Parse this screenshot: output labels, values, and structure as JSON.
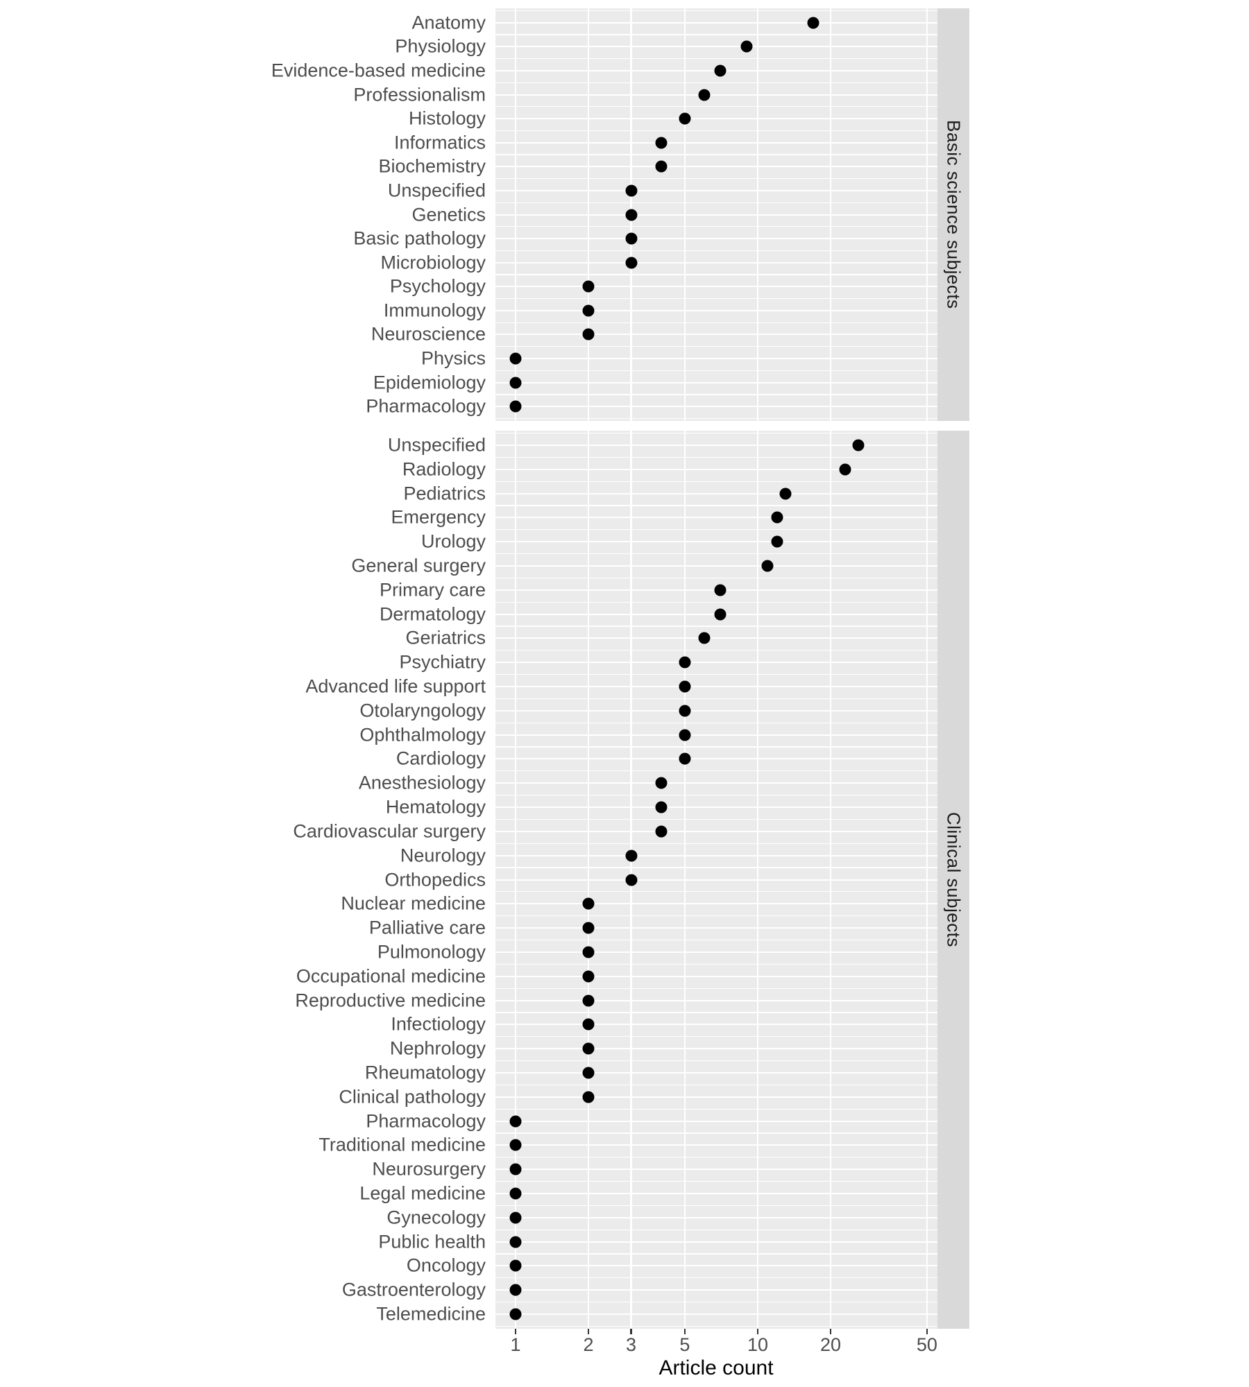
{
  "colors": {
    "background": "#ffffff",
    "panel_background": "#ebebeb",
    "strip_background": "#d9d9d9",
    "gridline": "#ffffff",
    "dot": "#000000",
    "category_label_text": "#4d4d4d",
    "tick_label_text": "#4d4d4d",
    "axis_title_text": "#000000",
    "strip_label_text": "#1a1a1a"
  },
  "chart_data": {
    "type": "scatter",
    "subtype": "faceted-cleveland-dot-plot",
    "title": "",
    "xlabel": "Article count",
    "ylabel": "",
    "x_scale": "log10",
    "x_ticks": [
      1,
      2,
      3,
      5,
      10,
      20,
      50
    ],
    "x_range_approx": [
      0.83,
      55
    ],
    "grid": "white major gridlines on gray panels, horizontal line per category row plus thinner lines between rows",
    "legend": "none",
    "strip_position": "right",
    "facets": [
      {
        "strip_label": "Basic science subjects",
        "categories": [
          "Anatomy",
          "Physiology",
          "Evidence-based medicine",
          "Professionalism",
          "Histology",
          "Informatics",
          "Biochemistry",
          "Unspecified",
          "Genetics",
          "Basic pathology",
          "Microbiology",
          "Psychology",
          "Immunology",
          "Neuroscience",
          "Physics",
          "Epidemiology",
          "Pharmacology"
        ],
        "values": [
          17,
          9,
          7,
          6,
          5,
          4,
          4,
          3,
          3,
          3,
          3,
          2,
          2,
          2,
          1,
          1,
          1
        ]
      },
      {
        "strip_label": "Clinical subjects",
        "categories": [
          "Unspecified",
          "Radiology",
          "Pediatrics",
          "Emergency",
          "Urology",
          "General surgery",
          "Primary care",
          "Dermatology",
          "Geriatrics",
          "Psychiatry",
          "Advanced life support",
          "Otolaryngology",
          "Ophthalmology",
          "Cardiology",
          "Anesthesiology",
          "Hematology",
          "Cardiovascular surgery",
          "Neurology",
          "Orthopedics",
          "Nuclear medicine",
          "Palliative care",
          "Pulmonology",
          "Occupational medicine",
          "Reproductive medicine",
          "Infectiology",
          "Nephrology",
          "Rheumatology",
          "Clinical pathology",
          "Pharmacology",
          "Traditional medicine",
          "Neurosurgery",
          "Legal medicine",
          "Gynecology",
          "Public health",
          "Oncology",
          "Gastroenterology",
          "Telemedicine"
        ],
        "values": [
          26,
          23,
          13,
          12,
          12,
          11,
          7,
          7,
          6,
          5,
          5,
          5,
          5,
          5,
          4,
          4,
          4,
          3,
          3,
          2,
          2,
          2,
          2,
          2,
          2,
          2,
          2,
          2,
          1,
          1,
          1,
          1,
          1,
          1,
          1,
          1,
          1
        ]
      }
    ]
  }
}
